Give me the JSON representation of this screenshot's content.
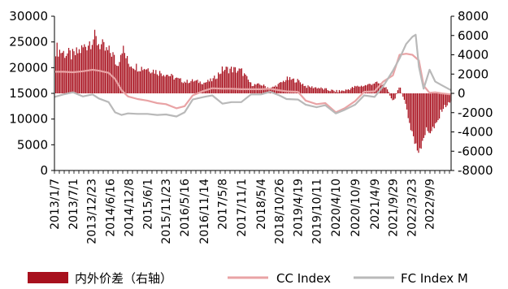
{
  "chart_data": {
    "type": "bar+line",
    "title": "",
    "legend": [
      {
        "key": "spread",
        "label": "内外价差（右轴）",
        "color": "#a8101d",
        "kind": "bar"
      },
      {
        "key": "cc",
        "label": "CC Index",
        "color": "#e9a3a5",
        "kind": "line"
      },
      {
        "key": "fc",
        "label": "FC Index M",
        "color": "#b9b9b9",
        "kind": "line"
      }
    ],
    "legend_position": "bottom",
    "left_axis": {
      "min": 0,
      "max": 30000,
      "ticks": [
        "0",
        "5000",
        "10000",
        "15000",
        "20000",
        "25000",
        "30000"
      ]
    },
    "right_axis": {
      "min": -8000,
      "max": 8000,
      "ticks": [
        "-8000",
        "-6000",
        "-4000",
        "-2000",
        "0",
        "2000",
        "4000",
        "6000",
        "8000"
      ]
    },
    "x_range": [
      "2013-01-07",
      "2023-03-31"
    ],
    "x_tick_labels": [
      {
        "date": "2013-01-07",
        "label": "2013/1/7"
      },
      {
        "date": "2013-07-01",
        "label": "2013/7/1"
      },
      {
        "date": "2013-12-23",
        "label": "2013/12/23"
      },
      {
        "date": "2014-06-16",
        "label": "2014/6/16"
      },
      {
        "date": "2014-12-08",
        "label": "2014/12/8"
      },
      {
        "date": "2015-06-01",
        "label": "2015/6/1"
      },
      {
        "date": "2015-11-23",
        "label": "2015/11/23"
      },
      {
        "date": "2016-05-16",
        "label": "2016/5/16"
      },
      {
        "date": "2016-11-14",
        "label": "2016/11/14"
      },
      {
        "date": "2017-05-08",
        "label": "2017/5/8"
      },
      {
        "date": "2017-11-01",
        "label": "2017/11/1"
      },
      {
        "date": "2018-05-04",
        "label": "2018/5/4"
      },
      {
        "date": "2018-10-26",
        "label": "2018/10/26"
      },
      {
        "date": "2019-04-19",
        "label": "2019/4/19"
      },
      {
        "date": "2019-10-11",
        "label": "2019/10/11"
      },
      {
        "date": "2020-04-10",
        "label": "2020/4/10"
      },
      {
        "date": "2020-10-09",
        "label": "2020/10/9"
      },
      {
        "date": "2021-04-09",
        "label": "2021/4/9"
      },
      {
        "date": "2021-09-29",
        "label": "2021/9/29"
      },
      {
        "date": "2022-03-23",
        "label": "2022/3/23"
      },
      {
        "date": "2022-09-09",
        "label": "2022/9/9"
      }
    ],
    "series": [
      {
        "name": "CC Index",
        "axis": "left",
        "points": [
          [
            "2013-01-07",
            19200
          ],
          [
            "2013-04-01",
            19200
          ],
          [
            "2013-07-01",
            19100
          ],
          [
            "2013-10-01",
            19300
          ],
          [
            "2014-01-01",
            19600
          ],
          [
            "2014-03-01",
            19400
          ],
          [
            "2014-06-01",
            19000
          ],
          [
            "2014-08-01",
            17800
          ],
          [
            "2014-10-01",
            15600
          ],
          [
            "2014-12-01",
            14400
          ],
          [
            "2015-03-01",
            13900
          ],
          [
            "2015-06-01",
            13600
          ],
          [
            "2015-09-01",
            13100
          ],
          [
            "2015-11-23",
            12900
          ],
          [
            "2016-03-01",
            12100
          ],
          [
            "2016-05-16",
            12500
          ],
          [
            "2016-08-01",
            14600
          ],
          [
            "2016-11-14",
            15500
          ],
          [
            "2017-02-01",
            16000
          ],
          [
            "2017-05-08",
            15900
          ],
          [
            "2017-08-01",
            15900
          ],
          [
            "2017-11-01",
            15800
          ],
          [
            "2018-02-01",
            15800
          ],
          [
            "2018-05-04",
            15800
          ],
          [
            "2018-08-01",
            15900
          ],
          [
            "2018-10-26",
            15600
          ],
          [
            "2019-01-01",
            15400
          ],
          [
            "2019-04-19",
            15300
          ],
          [
            "2019-07-01",
            13600
          ],
          [
            "2019-10-11",
            12900
          ],
          [
            "2020-01-01",
            13100
          ],
          [
            "2020-04-10",
            11300
          ],
          [
            "2020-07-01",
            12100
          ],
          [
            "2020-10-09",
            13500
          ],
          [
            "2021-01-01",
            15300
          ],
          [
            "2021-04-09",
            15400
          ],
          [
            "2021-07-01",
            17300
          ],
          [
            "2021-09-29",
            18500
          ],
          [
            "2021-12-01",
            22500
          ],
          [
            "2022-02-01",
            22700
          ],
          [
            "2022-04-01",
            22500
          ],
          [
            "2022-06-01",
            21400
          ],
          [
            "2022-07-15",
            16500
          ],
          [
            "2022-09-09",
            15100
          ],
          [
            "2022-11-01",
            15200
          ],
          [
            "2023-01-01",
            15000
          ],
          [
            "2023-03-31",
            14800
          ]
        ]
      },
      {
        "name": "FC Index M",
        "axis": "left",
        "points": [
          [
            "2013-01-07",
            14300
          ],
          [
            "2013-04-01",
            14800
          ],
          [
            "2013-07-01",
            15200
          ],
          [
            "2013-10-01",
            14400
          ],
          [
            "2014-01-01",
            14800
          ],
          [
            "2014-03-01",
            14000
          ],
          [
            "2014-06-01",
            13300
          ],
          [
            "2014-08-01",
            11300
          ],
          [
            "2014-10-01",
            10800
          ],
          [
            "2014-12-01",
            11100
          ],
          [
            "2015-03-01",
            11000
          ],
          [
            "2015-06-01",
            11000
          ],
          [
            "2015-09-01",
            10800
          ],
          [
            "2015-11-23",
            10900
          ],
          [
            "2016-03-01",
            10500
          ],
          [
            "2016-05-16",
            11300
          ],
          [
            "2016-08-01",
            13800
          ],
          [
            "2016-11-14",
            14300
          ],
          [
            "2017-02-01",
            14600
          ],
          [
            "2017-05-08",
            13000
          ],
          [
            "2017-08-01",
            13300
          ],
          [
            "2017-11-01",
            13300
          ],
          [
            "2018-02-01",
            14800
          ],
          [
            "2018-05-04",
            14800
          ],
          [
            "2018-08-01",
            15300
          ],
          [
            "2018-10-26",
            14600
          ],
          [
            "2019-01-01",
            13900
          ],
          [
            "2019-04-19",
            13800
          ],
          [
            "2019-07-01",
            12800
          ],
          [
            "2019-10-11",
            12300
          ],
          [
            "2020-01-01",
            12700
          ],
          [
            "2020-04-10",
            11100
          ],
          [
            "2020-07-01",
            11800
          ],
          [
            "2020-10-09",
            12800
          ],
          [
            "2021-01-01",
            14600
          ],
          [
            "2021-04-09",
            14300
          ],
          [
            "2021-07-01",
            16400
          ],
          [
            "2021-09-29",
            19400
          ],
          [
            "2021-12-01",
            21800
          ],
          [
            "2022-02-01",
            24600
          ],
          [
            "2022-04-01",
            26000
          ],
          [
            "2022-05-01",
            26400
          ],
          [
            "2022-06-01",
            20200
          ],
          [
            "2022-07-15",
            15900
          ],
          [
            "2022-09-09",
            19600
          ],
          [
            "2022-11-01",
            17300
          ],
          [
            "2023-01-01",
            16600
          ],
          [
            "2023-03-31",
            15600
          ]
        ]
      },
      {
        "name": "内外价差",
        "axis": "right",
        "points": [
          [
            "2013-01-07",
            4700
          ],
          [
            "2013-04-01",
            4200
          ],
          [
            "2013-07-01",
            3900
          ],
          [
            "2013-10-01",
            4700
          ],
          [
            "2014-01-01",
            5800
          ],
          [
            "2014-03-01",
            5200
          ],
          [
            "2014-05-01",
            4400
          ],
          [
            "2014-07-01",
            4200
          ],
          [
            "2014-08-15",
            2800
          ],
          [
            "2014-10-01",
            4800
          ],
          [
            "2014-12-01",
            3100
          ],
          [
            "2015-03-01",
            2700
          ],
          [
            "2015-06-01",
            2600
          ],
          [
            "2015-09-01",
            2200
          ],
          [
            "2015-11-23",
            2000
          ],
          [
            "2016-03-01",
            1500
          ],
          [
            "2016-05-16",
            1200
          ],
          [
            "2016-08-01",
            1300
          ],
          [
            "2016-11-14",
            1100
          ],
          [
            "2017-02-01",
            1400
          ],
          [
            "2017-05-08",
            2500
          ],
          [
            "2017-08-01",
            2500
          ],
          [
            "2017-11-01",
            2300
          ],
          [
            "2018-02-01",
            900
          ],
          [
            "2018-05-04",
            900
          ],
          [
            "2018-08-01",
            500
          ],
          [
            "2018-10-26",
            1000
          ],
          [
            "2019-01-01",
            1500
          ],
          [
            "2019-04-19",
            1300
          ],
          [
            "2019-07-01",
            700
          ],
          [
            "2019-10-11",
            600
          ],
          [
            "2020-01-01",
            400
          ],
          [
            "2020-04-10",
            200
          ],
          [
            "2020-07-01",
            300
          ],
          [
            "2020-10-09",
            700
          ],
          [
            "2021-01-01",
            800
          ],
          [
            "2021-04-09",
            1100
          ],
          [
            "2021-07-01",
            900
          ],
          [
            "2021-09-29",
            -800
          ],
          [
            "2021-12-01",
            700
          ],
          [
            "2022-02-01",
            -1500
          ],
          [
            "2022-03-01",
            -3200
          ],
          [
            "2022-04-01",
            -4200
          ],
          [
            "2022-05-01",
            -5900
          ],
          [
            "2022-06-01",
            -5600
          ],
          [
            "2022-07-15",
            -4200
          ],
          [
            "2022-09-09",
            -3800
          ],
          [
            "2022-11-01",
            -3600
          ],
          [
            "2023-01-01",
            -1600
          ],
          [
            "2023-03-31",
            -800
          ]
        ]
      }
    ]
  }
}
